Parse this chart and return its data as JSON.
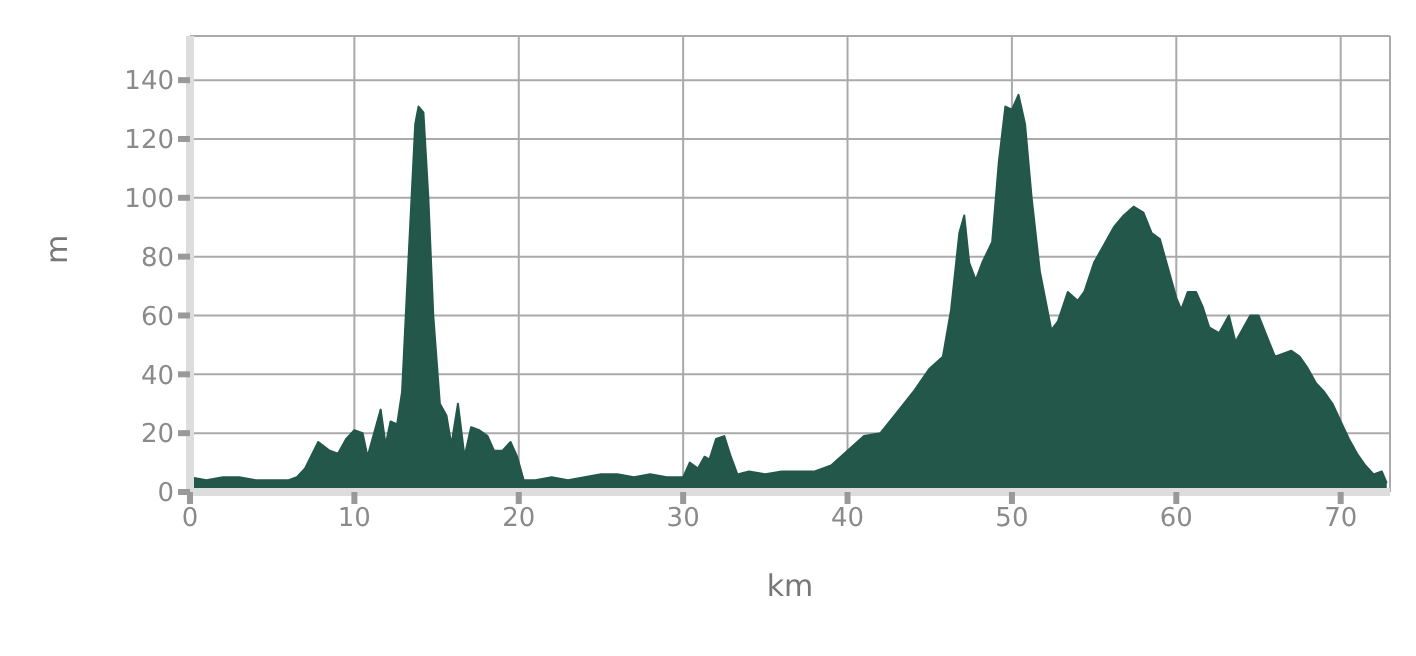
{
  "chart_data": {
    "type": "area",
    "xlabel": "km",
    "ylabel": "m",
    "xlim": [
      0,
      73
    ],
    "xticks": [
      0,
      10,
      20,
      30,
      40,
      50,
      60,
      70
    ],
    "ylim": [
      0,
      155
    ],
    "yticks": [
      0,
      20,
      40,
      60,
      80,
      100,
      120,
      140
    ],
    "grid": true,
    "legend": false,
    "x": [
      0,
      1,
      2,
      3,
      4,
      5,
      6,
      6.5,
      7,
      7.8,
      8.5,
      9,
      9.5,
      10,
      10.5,
      10.8,
      11,
      11.6,
      11.9,
      12.2,
      12.6,
      12.9,
      13.3,
      13.7,
      13.9,
      14.2,
      14.5,
      14.8,
      15.2,
      15.6,
      15.9,
      16.3,
      16.7,
      17.1,
      17.6,
      18.1,
      18.5,
      19,
      19.5,
      19.9,
      20.3,
      21,
      22,
      23,
      24,
      25,
      26,
      27,
      28,
      29,
      30,
      30.4,
      30.9,
      31.3,
      31.6,
      32,
      32.5,
      32.9,
      33.3,
      34,
      35,
      36,
      37,
      38,
      39,
      40,
      41,
      42,
      43,
      44,
      45,
      45.8,
      46.3,
      46.8,
      47.1,
      47.4,
      47.8,
      48.2,
      48.8,
      49.2,
      49.6,
      50,
      50.4,
      50.8,
      51.2,
      51.7,
      52.4,
      52.8,
      53.4,
      54,
      54.4,
      55,
      55.6,
      56.2,
      56.8,
      57.4,
      58,
      58.5,
      59,
      59.4,
      60,
      60.3,
      60.7,
      61.2,
      61.6,
      62,
      62.6,
      63.2,
      63.6,
      64,
      64.5,
      65,
      65.5,
      66,
      66.5,
      67,
      67.5,
      68,
      68.5,
      69,
      69.5,
      70,
      70.5,
      71,
      71.5,
      72,
      72.5,
      72.8
    ],
    "series": [
      {
        "color": "#22574a",
        "values": [
          5,
          4,
          5,
          5,
          4,
          4,
          4,
          5,
          8,
          17,
          14,
          13,
          18,
          21,
          20,
          12,
          16,
          28,
          16,
          24,
          23,
          34,
          80,
          125,
          131,
          129,
          100,
          60,
          30,
          26,
          16,
          30,
          12,
          22,
          21,
          19,
          14,
          14,
          17,
          12,
          4,
          4,
          5,
          4,
          5,
          6,
          6,
          5,
          6,
          5,
          5,
          10,
          8,
          12,
          11,
          18,
          19,
          12,
          6,
          7,
          6,
          7,
          7,
          7,
          9,
          14,
          19,
          20,
          27,
          34,
          42,
          46,
          62,
          88,
          94,
          78,
          72,
          78,
          85,
          112,
          131,
          130,
          135,
          125,
          100,
          75,
          55,
          58,
          68,
          65,
          68,
          78,
          84,
          90,
          94,
          97,
          95,
          88,
          86,
          78,
          66,
          62,
          68,
          68,
          63,
          56,
          54,
          60,
          51,
          55,
          60,
          60,
          53,
          46,
          47,
          48,
          46,
          42,
          37,
          34,
          30,
          24,
          18,
          13,
          9,
          6,
          7,
          3
        ]
      }
    ]
  }
}
